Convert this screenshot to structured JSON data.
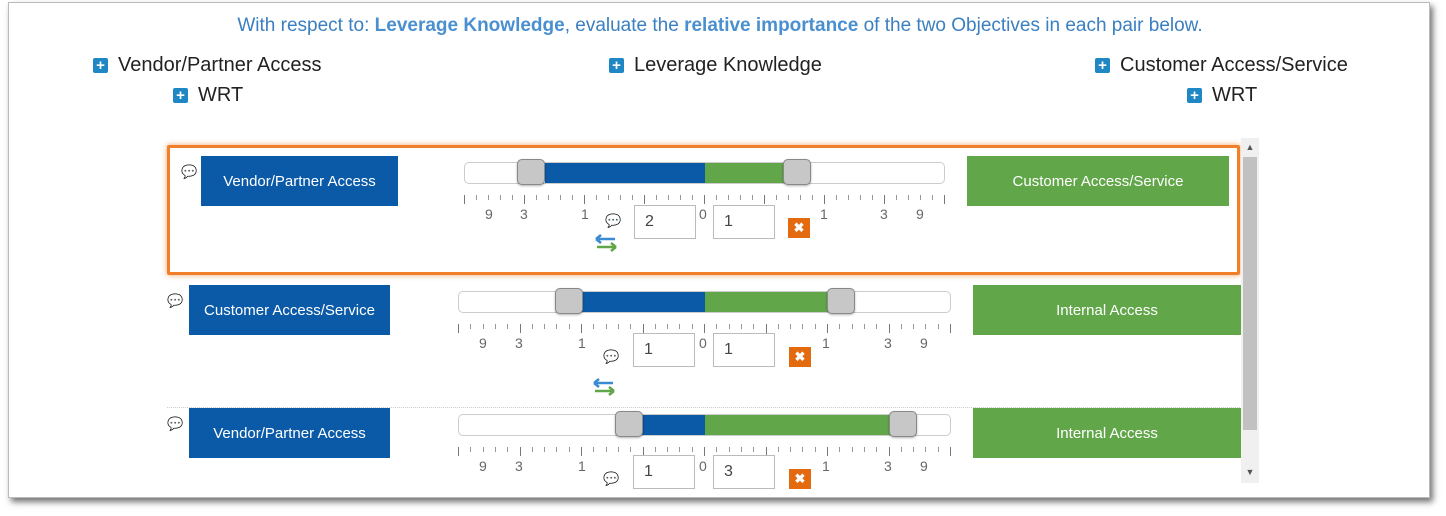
{
  "instruction": {
    "prefix": "With respect to: ",
    "goal": "Leverage Knowledge",
    "middle": ", evaluate the ",
    "emphasis": "relative importance",
    "suffix": " of the two Objectives in each pair below."
  },
  "hierarchy": {
    "left_top": "Vendor/Partner Access",
    "left_sub": "WRT",
    "center": "Leverage Knowledge",
    "right_top": "Customer Access/Service",
    "right_sub": "WRT"
  },
  "scale_labels": [
    "9",
    "3",
    "1",
    "0",
    "1",
    "3",
    "9"
  ],
  "pairs": [
    {
      "left": "Vendor/Partner Access",
      "right": "Customer Access/Service",
      "left_value": "2",
      "right_value": "1",
      "selected": true
    },
    {
      "left": "Customer Access/Service",
      "right": "Internal Access",
      "left_value": "1",
      "right_value": "1",
      "selected": false
    },
    {
      "left": "Vendor/Partner Access",
      "right": "Internal Access",
      "left_value": "1",
      "right_value": "3",
      "selected": false
    }
  ],
  "icons": {
    "expand": "plus-square-icon",
    "comment": "comment-icon",
    "swap": "swap-arrows-icon",
    "clear": "close-icon"
  },
  "colors": {
    "left_objective": "#0a5aa8",
    "right_objective": "#62a64a",
    "selection": "#f07e2a",
    "clear_button": "#e36a0e",
    "instruction_text": "#3a7fc1"
  }
}
